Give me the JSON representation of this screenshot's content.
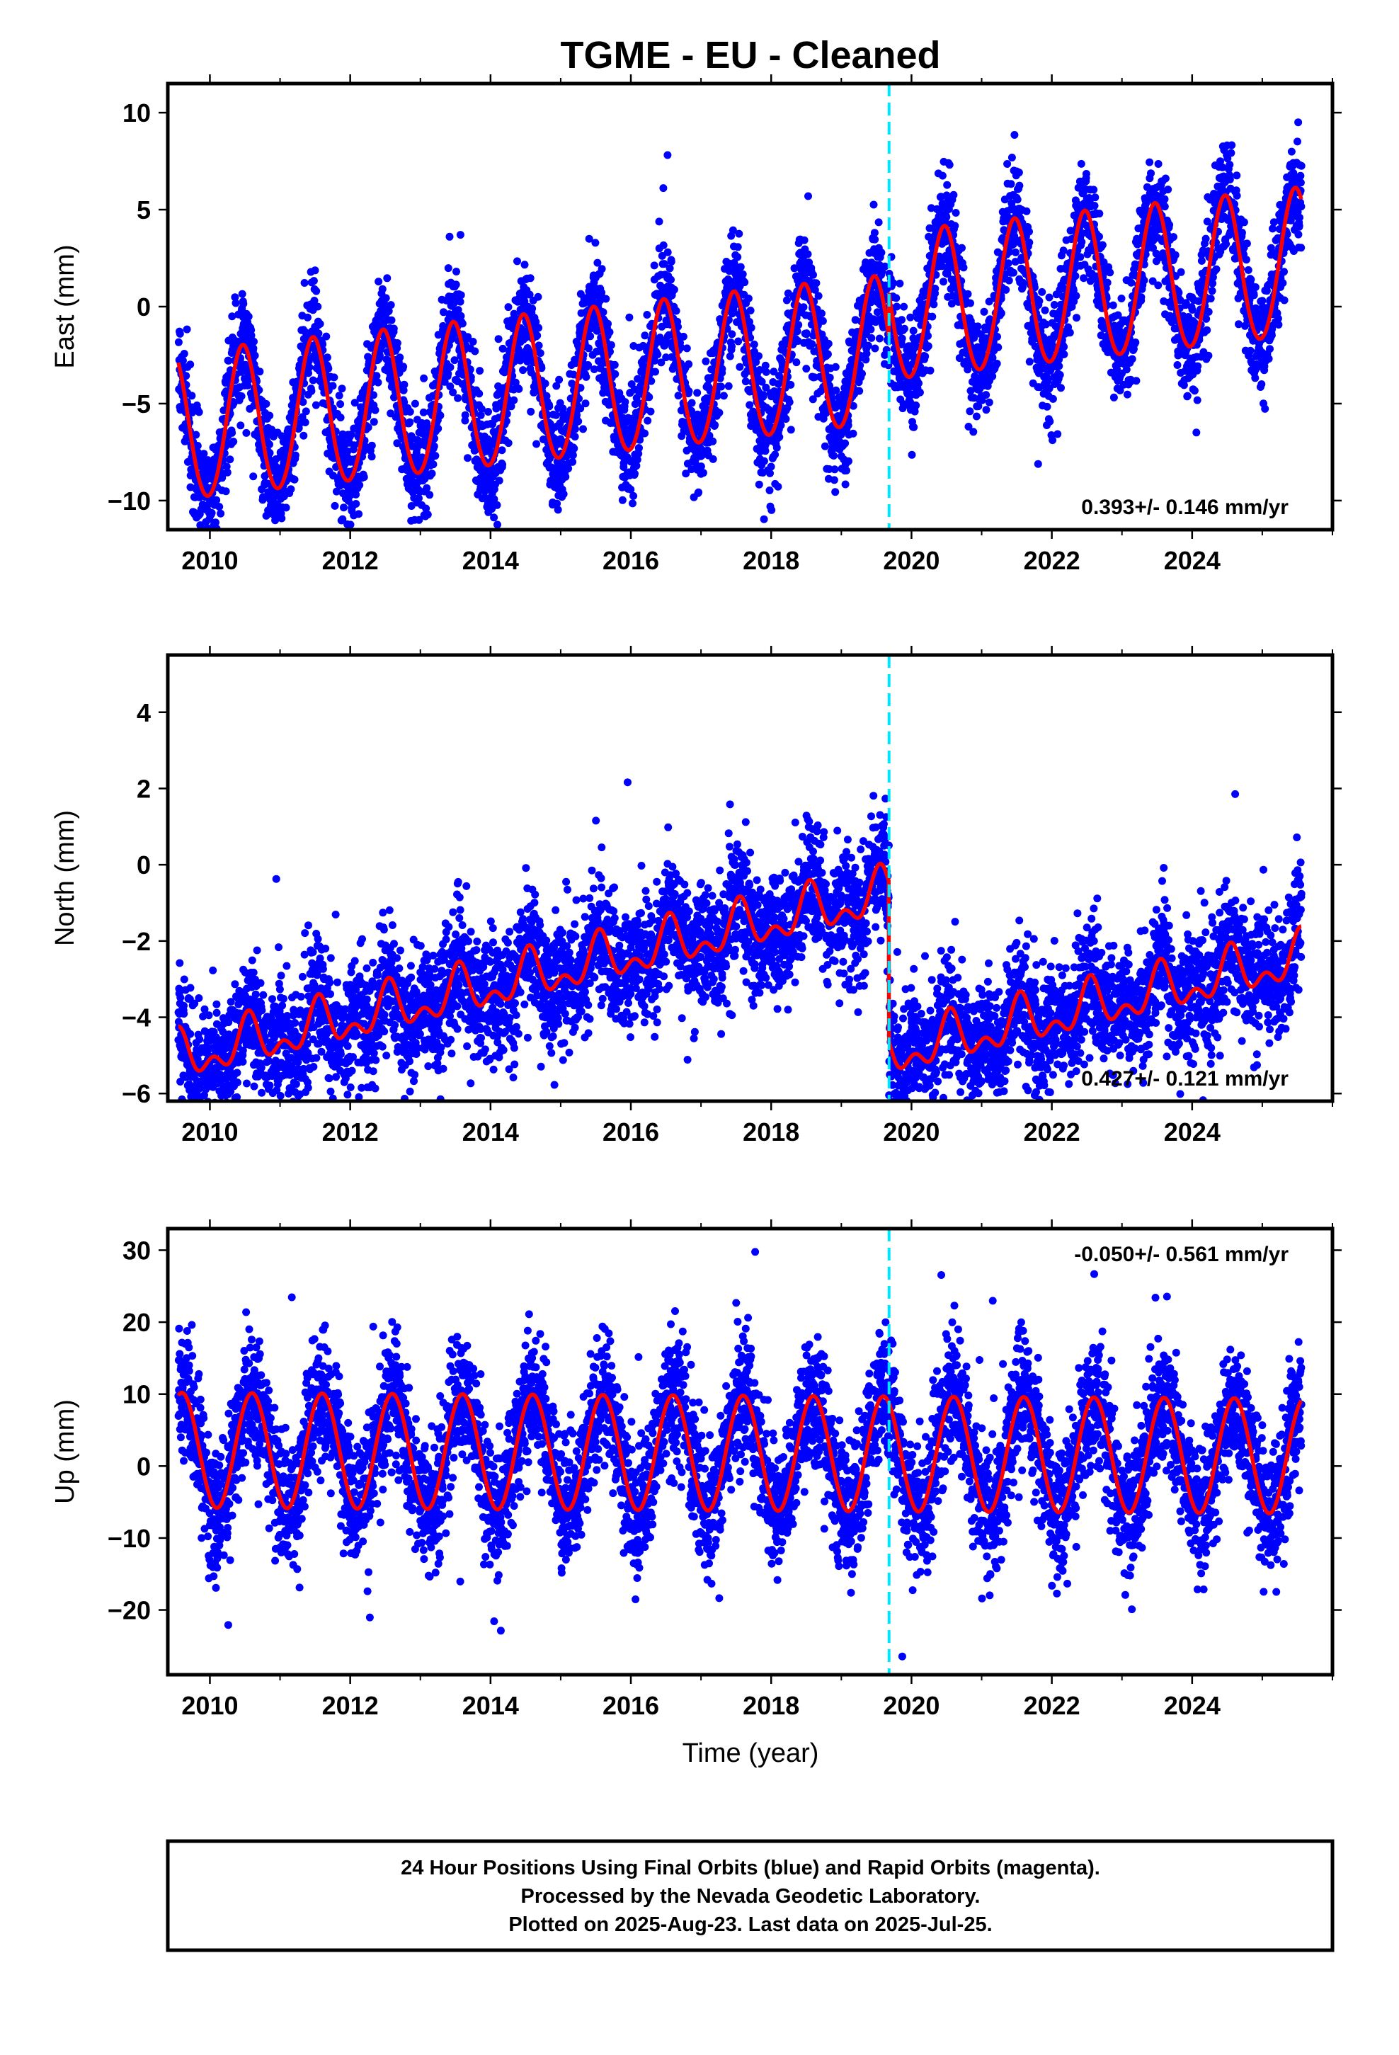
{
  "title": "TGME  - EU - Cleaned",
  "x_axis_label": "Time (year)",
  "caption": {
    "line1": "24 Hour Positions Using Final Orbits (blue) and Rapid Orbits (magenta).",
    "line2": "Processed by the Nevada Geodetic Laboratory.",
    "line3": "Plotted on 2025-Aug-23. Last data on 2025-Jul-25."
  },
  "colors": {
    "final_orbits": "#0000ff",
    "model": "#ff0000",
    "equipment_change": "#00e5ff",
    "frame": "#000000"
  },
  "chart_data": [
    {
      "type": "scatter",
      "component": "East",
      "ylabel": "East (mm)",
      "xlim": [
        2009.4,
        2026.0
      ],
      "ylim": [
        -11.5,
        11.5
      ],
      "x_ticks": [
        2010,
        2012,
        2014,
        2016,
        2018,
        2020,
        2022,
        2024
      ],
      "y_ticks": [
        -10,
        -5,
        0,
        5,
        10
      ],
      "rate_text": "0.393+/- 0.146 mm/yr",
      "rate_position": "bottom-right",
      "equipment_change_year": 2019.68,
      "series": [
        {
          "role": "daily positions (final orbits)",
          "style": "points",
          "time_range": [
            2009.55,
            2025.56
          ],
          "offset": -3.2,
          "rate": 0.393,
          "annual_amplitude": 3.8,
          "annual_peak_phase": 0.47,
          "semiannual_amplitude": 0.2,
          "noise_sd": 1.4,
          "offset_after_equipment_change": 2.2
        },
        {
          "role": "model fit",
          "style": "line",
          "time_range": [
            2009.55,
            2025.56
          ],
          "offset": -3.2,
          "rate": 0.393,
          "annual_amplitude": 3.8,
          "annual_peak_phase": 0.47,
          "semiannual_amplitude": 0.2,
          "offset_after_equipment_change": 2.2
        }
      ]
    },
    {
      "type": "scatter",
      "component": "North",
      "ylabel": "North (mm)",
      "xlim": [
        2009.4,
        2026.0
      ],
      "ylim": [
        -6.2,
        5.5
      ],
      "x_ticks": [
        2010,
        2012,
        2014,
        2016,
        2018,
        2020,
        2022,
        2024
      ],
      "y_ticks": [
        -6,
        -4,
        -2,
        0,
        2,
        4
      ],
      "rate_text": "0.427+/- 0.121 mm/yr",
      "rate_position": "bottom-right",
      "equipment_change_year": 2019.68,
      "series": [
        {
          "role": "daily positions (final orbits)",
          "style": "points",
          "time_range": [
            2009.55,
            2025.56
          ],
          "offset": -1.7,
          "rate": 0.427,
          "annual_amplitude": 0.5,
          "annual_peak_phase": 0.55,
          "semiannual_amplitude": 0.35,
          "noise_sd": 0.8,
          "offset_after_equipment_change": -4.2
        },
        {
          "role": "model fit",
          "style": "line",
          "time_range": [
            2009.55,
            2025.56
          ],
          "offset": -1.7,
          "rate": 0.427,
          "annual_amplitude": 0.5,
          "annual_peak_phase": 0.55,
          "semiannual_amplitude": 0.35,
          "offset_after_equipment_change": -4.2
        }
      ]
    },
    {
      "type": "scatter",
      "component": "Up",
      "ylabel": "Up (mm)",
      "xlim": [
        2009.4,
        2026.0
      ],
      "ylim": [
        -29,
        33
      ],
      "x_ticks": [
        2010,
        2012,
        2014,
        2016,
        2018,
        2020,
        2022,
        2024
      ],
      "y_ticks": [
        -20,
        -10,
        0,
        10,
        20,
        30
      ],
      "rate_text": "-0.050+/- 0.561 mm/yr",
      "rate_position": "top-right",
      "equipment_change_year": 2019.68,
      "series": [
        {
          "role": "daily positions (final orbits)",
          "style": "points",
          "time_range": [
            2009.55,
            2025.56
          ],
          "offset": 1.8,
          "rate": -0.05,
          "annual_amplitude": 8.0,
          "annual_peak_phase": 0.6,
          "semiannual_amplitude": 0.0,
          "noise_sd": 4.5,
          "offset_after_equipment_change": 0.0
        },
        {
          "role": "model fit",
          "style": "line",
          "time_range": [
            2009.55,
            2025.56
          ],
          "offset": 1.8,
          "rate": -0.05,
          "annual_amplitude": 8.0,
          "annual_peak_phase": 0.6,
          "semiannual_amplitude": 0.0,
          "offset_after_equipment_change": 0.0
        }
      ]
    }
  ]
}
